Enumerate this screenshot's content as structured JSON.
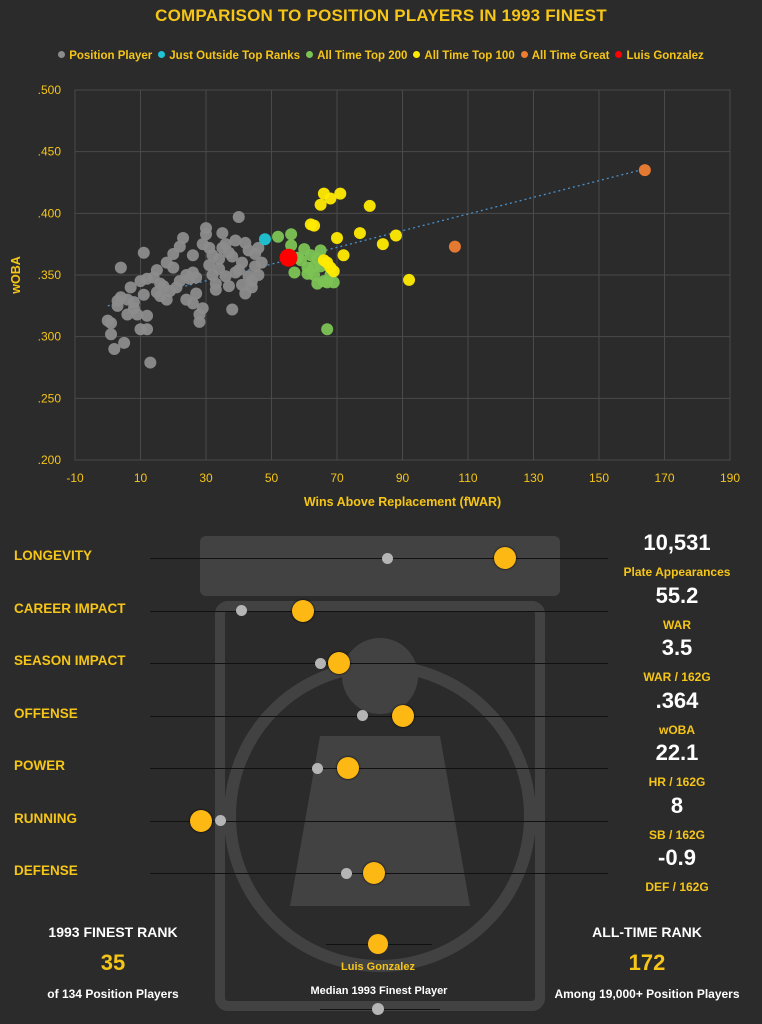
{
  "title": "COMPARISON TO POSITION PLAYERS IN 1993 FINEST",
  "legend": [
    {
      "label": "Position Player",
      "color": "#8c8c8c"
    },
    {
      "label": "Just Outside Top Ranks",
      "color": "#1fc4d4"
    },
    {
      "label": "All Time Top 200",
      "color": "#7cc354"
    },
    {
      "label": "All Time Top 100",
      "color": "#ffea00"
    },
    {
      "label": "All Time Great",
      "color": "#ee7d31"
    },
    {
      "label": "Luis Gonzalez",
      "color": "#ff0000"
    }
  ],
  "chart_data": {
    "type": "scatter",
    "title": "COMPARISON TO POSITION PLAYERS IN 1993 FINEST",
    "xlabel": "Wins Above Replacement (fWAR)",
    "ylabel": "wOBA",
    "xlim": [
      -10,
      190
    ],
    "ylim": [
      0.2,
      0.5
    ],
    "xticks": [
      "-10",
      "10",
      "30",
      "50",
      "70",
      "90",
      "110",
      "130",
      "150",
      "170",
      "190"
    ],
    "yticks": [
      ".200",
      ".250",
      ".300",
      ".350",
      ".400",
      ".450",
      ".500"
    ],
    "grid": true,
    "trendline": {
      "x": [
        0,
        164
      ],
      "y": [
        0.325,
        0.436
      ]
    },
    "series": [
      {
        "name": "Position Player",
        "color": "#8c8c8c",
        "points": [
          [
            0,
            0.313
          ],
          [
            1,
            0.302
          ],
          [
            1,
            0.311
          ],
          [
            2,
            0.29
          ],
          [
            3,
            0.325
          ],
          [
            4,
            0.332
          ],
          [
            4,
            0.356
          ],
          [
            5,
            0.295
          ],
          [
            6,
            0.33
          ],
          [
            6,
            0.318
          ],
          [
            7,
            0.34
          ],
          [
            8,
            0.328
          ],
          [
            9,
            0.318
          ],
          [
            10,
            0.306
          ],
          [
            10,
            0.345
          ],
          [
            11,
            0.368
          ],
          [
            11,
            0.334
          ],
          [
            12,
            0.347
          ],
          [
            12,
            0.317
          ],
          [
            12,
            0.306
          ],
          [
            13,
            0.279
          ],
          [
            14,
            0.348
          ],
          [
            15,
            0.336
          ],
          [
            16,
            0.333
          ],
          [
            16,
            0.343
          ],
          [
            17,
            0.341
          ],
          [
            18,
            0.36
          ],
          [
            19,
            0.337
          ],
          [
            20,
            0.356
          ],
          [
            20,
            0.367
          ],
          [
            21,
            0.34
          ],
          [
            22,
            0.373
          ],
          [
            23,
            0.38
          ],
          [
            24,
            0.35
          ],
          [
            24,
            0.33
          ],
          [
            25,
            0.347
          ],
          [
            26,
            0.327
          ],
          [
            26,
            0.366
          ],
          [
            27,
            0.335
          ],
          [
            28,
            0.312
          ],
          [
            28,
            0.318
          ],
          [
            29,
            0.323
          ],
          [
            29,
            0.375
          ],
          [
            30,
            0.388
          ],
          [
            30,
            0.383
          ],
          [
            31,
            0.372
          ],
          [
            32,
            0.35
          ],
          [
            32,
            0.366
          ],
          [
            33,
            0.338
          ],
          [
            34,
            0.355
          ],
          [
            34,
            0.363
          ],
          [
            35,
            0.372
          ],
          [
            35,
            0.384
          ],
          [
            36,
            0.349
          ],
          [
            37,
            0.341
          ],
          [
            37,
            0.368
          ],
          [
            38,
            0.322
          ],
          [
            38,
            0.365
          ],
          [
            39,
            0.352
          ],
          [
            39,
            0.378
          ],
          [
            40,
            0.354
          ],
          [
            40,
            0.397
          ],
          [
            41,
            0.342
          ],
          [
            41,
            0.36
          ],
          [
            42,
            0.376
          ],
          [
            42,
            0.335
          ],
          [
            43,
            0.349
          ],
          [
            43,
            0.37
          ],
          [
            44,
            0.345
          ],
          [
            45,
            0.357
          ],
          [
            45,
            0.367
          ],
          [
            46,
            0.35
          ],
          [
            47,
            0.36
          ],
          [
            46,
            0.372
          ],
          [
            44,
            0.34
          ],
          [
            36,
            0.375
          ],
          [
            31,
            0.358
          ],
          [
            27,
            0.348
          ],
          [
            18,
            0.33
          ],
          [
            15,
            0.354
          ],
          [
            8,
            0.323
          ],
          [
            3,
            0.329
          ],
          [
            22,
            0.345
          ],
          [
            26,
            0.352
          ],
          [
            33,
            0.343
          ]
        ]
      },
      {
        "name": "Just Outside Top Ranks",
        "color": "#1fc4d4",
        "points": [
          [
            48,
            0.379
          ]
        ]
      },
      {
        "name": "All Time Top 200",
        "color": "#7cc354",
        "points": [
          [
            52,
            0.381
          ],
          [
            56,
            0.383
          ],
          [
            56,
            0.374
          ],
          [
            57,
            0.352
          ],
          [
            58,
            0.364
          ],
          [
            59,
            0.362
          ],
          [
            60,
            0.371
          ],
          [
            61,
            0.351
          ],
          [
            62,
            0.366
          ],
          [
            63,
            0.35
          ],
          [
            63,
            0.357
          ],
          [
            64,
            0.343
          ],
          [
            65,
            0.37
          ],
          [
            65,
            0.357
          ],
          [
            66,
            0.345
          ],
          [
            67,
            0.344
          ],
          [
            68,
            0.35
          ],
          [
            69,
            0.344
          ],
          [
            67,
            0.306
          ],
          [
            61,
            0.356
          ],
          [
            64,
            0.363
          ]
        ]
      },
      {
        "name": "All Time Top 100",
        "color": "#ffea00",
        "points": [
          [
            62,
            0.391
          ],
          [
            63,
            0.39
          ],
          [
            65,
            0.407
          ],
          [
            66,
            0.416
          ],
          [
            68,
            0.412
          ],
          [
            71,
            0.416
          ],
          [
            70,
            0.38
          ],
          [
            66,
            0.362
          ],
          [
            67,
            0.36
          ],
          [
            68,
            0.356
          ],
          [
            72,
            0.366
          ],
          [
            77,
            0.384
          ],
          [
            80,
            0.406
          ],
          [
            84,
            0.375
          ],
          [
            88,
            0.382
          ],
          [
            92,
            0.346
          ],
          [
            69,
            0.353
          ]
        ]
      },
      {
        "name": "All Time Great",
        "color": "#ee7d31",
        "points": [
          [
            106,
            0.373
          ],
          [
            164,
            0.435
          ]
        ]
      },
      {
        "name": "Luis Gonzalez",
        "color": "#ff0000",
        "points": [
          [
            55.2,
            0.364
          ]
        ]
      }
    ]
  },
  "metrics": [
    {
      "label": "LONGEVITY",
      "value": "10,531",
      "unit": "Plate Appearances",
      "median_pct": 0.518,
      "player_pct": 0.776
    },
    {
      "label": "CAREER IMPACT",
      "value": "55.2",
      "unit": "WAR",
      "median_pct": 0.199,
      "player_pct": 0.335
    },
    {
      "label": "SEASON IMPACT",
      "value": "3.5",
      "unit": "WAR / 162G",
      "median_pct": 0.372,
      "player_pct": 0.413
    },
    {
      "label": "OFFENSE",
      "value": ".364",
      "unit": "wOBA",
      "median_pct": 0.463,
      "player_pct": 0.552
    },
    {
      "label": "POWER",
      "value": "22.1",
      "unit": "HR / 162G",
      "median_pct": 0.365,
      "player_pct": 0.432
    },
    {
      "label": "RUNNING",
      "value": "8",
      "unit": "SB / 162G",
      "median_pct": 0.153,
      "player_pct": 0.111
    },
    {
      "label": "DEFENSE",
      "value": "-0.9",
      "unit": "DEF / 162G",
      "median_pct": 0.428,
      "player_pct": 0.489
    }
  ],
  "ranks": {
    "finest_head": "1993 FINEST RANK",
    "finest_num": "35",
    "finest_sub": "of 134 Position Players",
    "alltime_head": "ALL-TIME RANK",
    "alltime_num": "172",
    "alltime_sub": "Among 19,000+ Position Players"
  },
  "key": {
    "player_label": "Luis Gonzalez",
    "median_label": "Median 1993 Finest Player"
  }
}
